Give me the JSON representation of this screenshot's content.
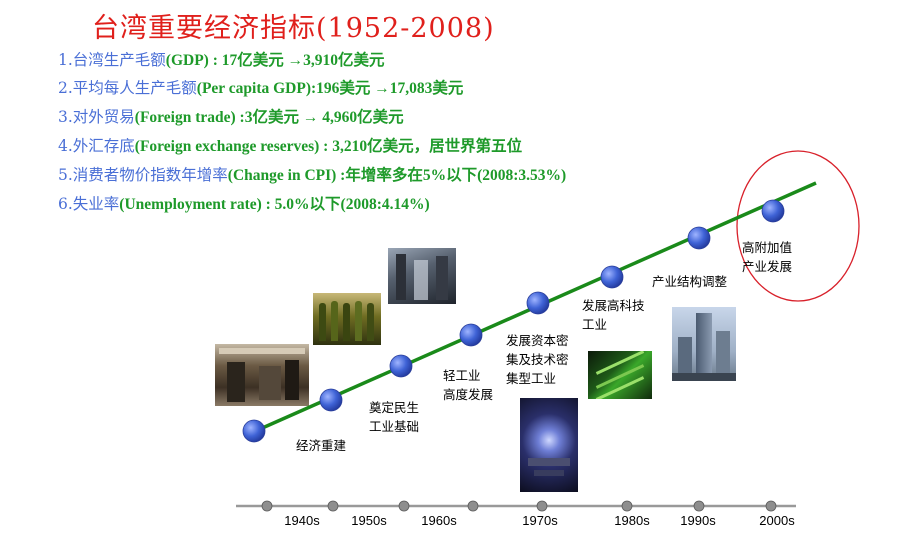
{
  "title": "台湾重要经济指标(1952-2008)",
  "indicators": [
    {
      "cn": "1.台湾生产毛额",
      "en": "(GDP) : 17亿美元 →3,910亿美元"
    },
    {
      "cn": "2.平均每人生产毛额",
      "en": "(Per capita GDP):196美元 →17,083美元"
    },
    {
      "cn": "3.对外贸易",
      "en": "(Foreign trade) :3亿美元 → 4,960亿美元"
    },
    {
      "cn": "4.外汇存底",
      "en": "(Foreign exchange reserves) : 3,210亿美元，居世界第五位"
    },
    {
      "cn": "5.消费者物价指数年增率",
      "en": "(Change in CPI) :年增率多在5%以下(2008:3.53%)"
    },
    {
      "cn": "6.失业率",
      "en": "(Unemployment rate) : 5.0%以下(2008:4.14%)"
    }
  ],
  "stages": [
    {
      "line1": "经济重建",
      "line2": ""
    },
    {
      "line1": "奠定民生",
      "line2": "工业基础"
    },
    {
      "line1": "轻工业",
      "line2": "高度发展"
    },
    {
      "line1": "发展资本密",
      "line2": "集及技术密",
      "line3": "集型工业"
    },
    {
      "line1": "发展高科技",
      "line2": "工业"
    },
    {
      "line1": "产业结构调整",
      "line2": ""
    },
    {
      "line1": "高附加值",
      "line2": "产业发展"
    }
  ],
  "decades": [
    "1940s",
    "1950s",
    "1960s",
    "1970s",
    "1980s",
    "1990s",
    "2000s"
  ],
  "colors": {
    "title": "#e0201c",
    "cn_text": "#4a6fd6",
    "en_text": "#1e9a2a",
    "trend_line": "#1a8a1a",
    "node": "#3f63d6",
    "highlight_circle": "#d8202a"
  }
}
